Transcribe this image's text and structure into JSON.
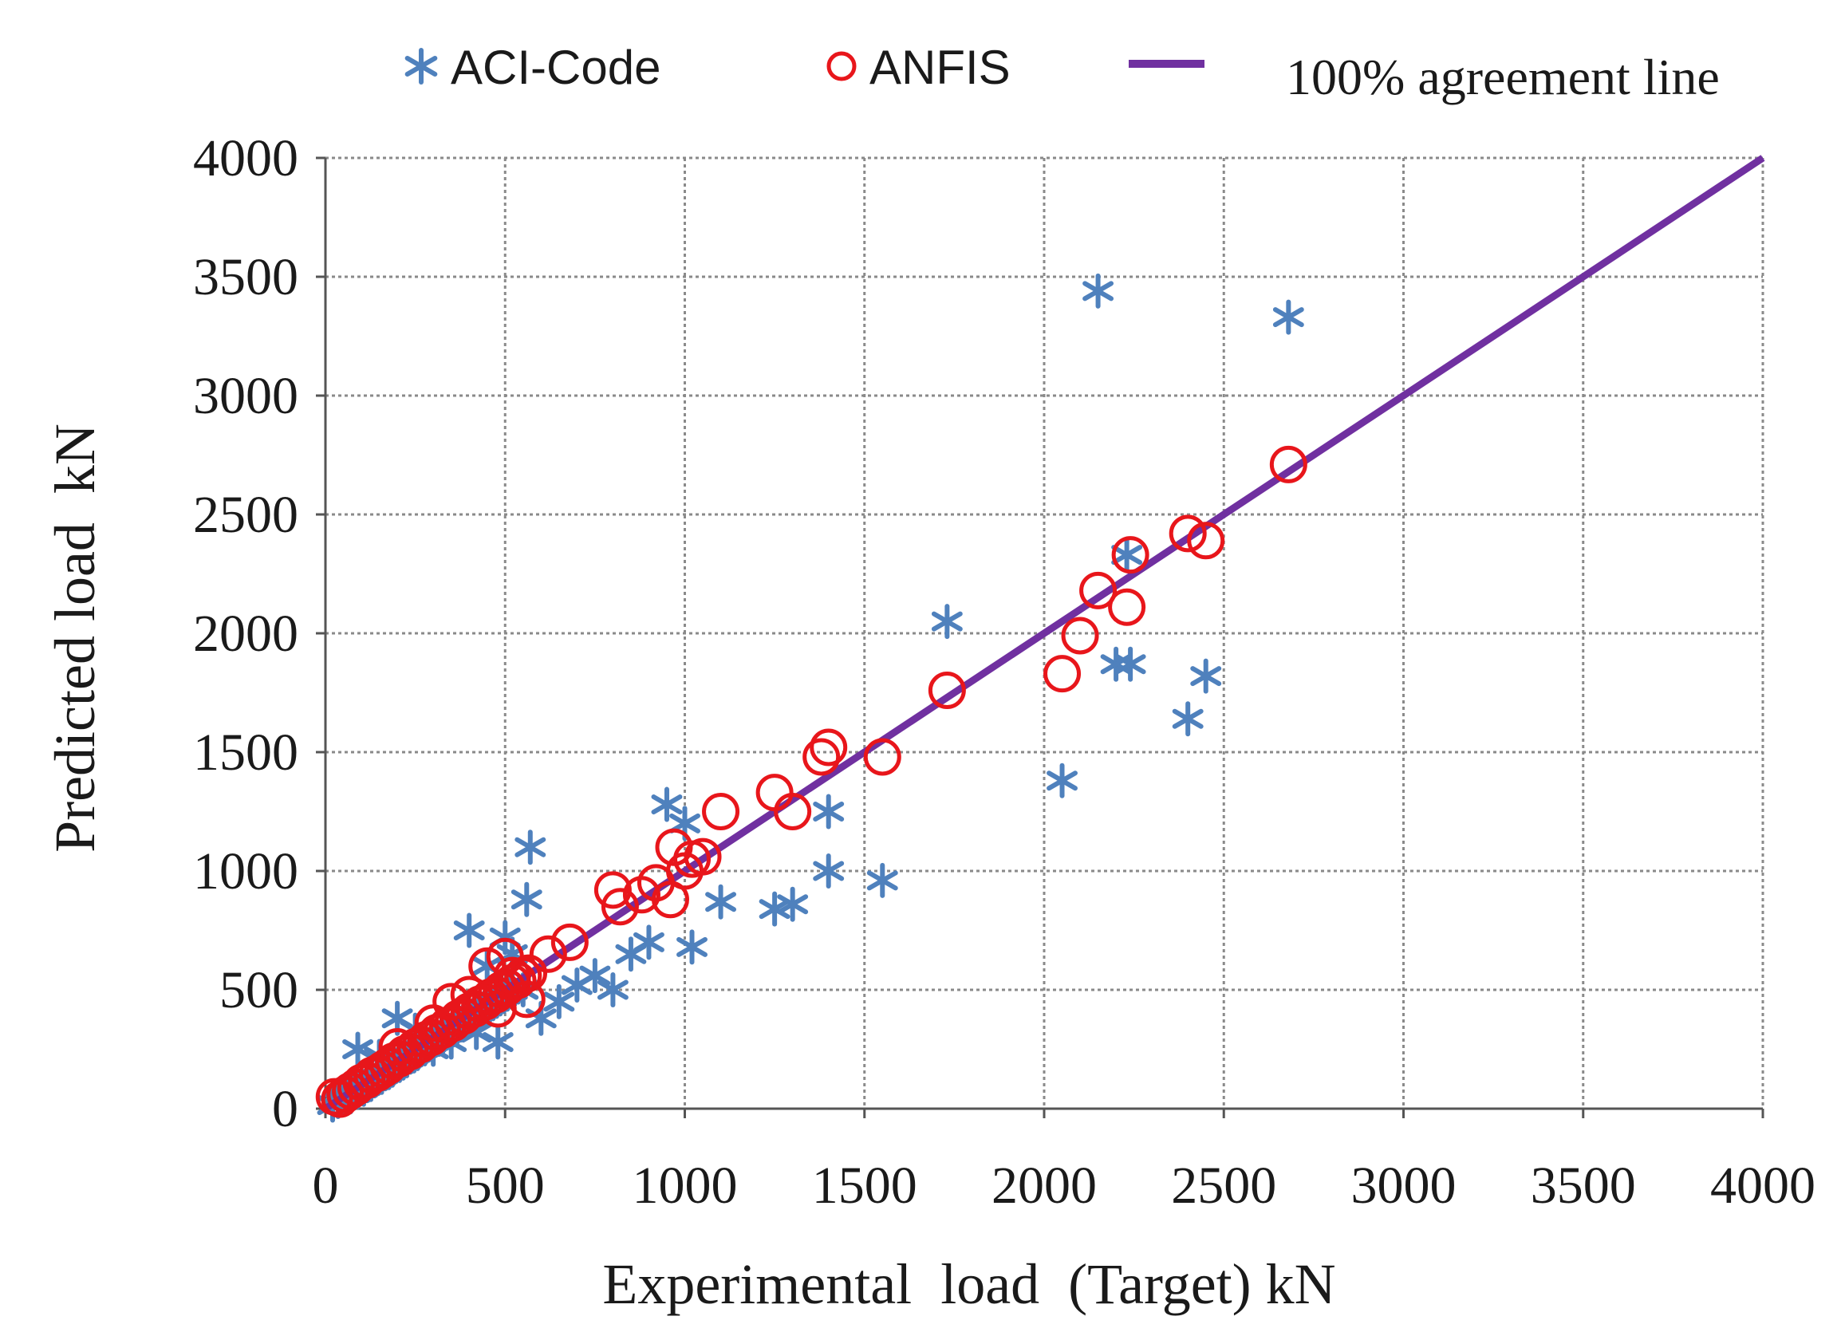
{
  "chart_data": {
    "type": "scatter",
    "title": "",
    "xlabel": "Experimental  load  (Target) kN",
    "ylabel": "Predicted load  kN",
    "xlim": [
      0,
      4000
    ],
    "ylim": [
      0,
      4000
    ],
    "xticks": [
      "0",
      "500",
      "1000",
      "1500",
      "2000",
      "2500",
      "3000",
      "3500",
      "4000"
    ],
    "yticks": [
      "0",
      "500",
      "1000",
      "1500",
      "2000",
      "2500",
      "3000",
      "3500",
      "4000"
    ],
    "grid": true,
    "legend_position": "top",
    "series": [
      {
        "name": "ACI-Code",
        "marker": "asterisk",
        "color": "#4F81BD",
        "points": [
          [
            20,
            15
          ],
          [
            35,
            30
          ],
          [
            50,
            40
          ],
          [
            60,
            55
          ],
          [
            70,
            50
          ],
          [
            80,
            65
          ],
          [
            90,
            70
          ],
          [
            100,
            85
          ],
          [
            110,
            95
          ],
          [
            120,
            100
          ],
          [
            130,
            115
          ],
          [
            140,
            120
          ],
          [
            150,
            130
          ],
          [
            160,
            145
          ],
          [
            170,
            150
          ],
          [
            180,
            160
          ],
          [
            190,
            170
          ],
          [
            200,
            185
          ],
          [
            210,
            190
          ],
          [
            220,
            200
          ],
          [
            230,
            215
          ],
          [
            240,
            220
          ],
          [
            250,
            235
          ],
          [
            260,
            240
          ],
          [
            270,
            255
          ],
          [
            280,
            260
          ],
          [
            290,
            270
          ],
          [
            300,
            285
          ],
          [
            310,
            290
          ],
          [
            320,
            300
          ],
          [
            330,
            310
          ],
          [
            340,
            320
          ],
          [
            350,
            330
          ],
          [
            360,
            345
          ],
          [
            370,
            350
          ],
          [
            380,
            360
          ],
          [
            390,
            370
          ],
          [
            400,
            380
          ],
          [
            410,
            390
          ],
          [
            420,
            400
          ],
          [
            430,
            410
          ],
          [
            440,
            420
          ],
          [
            450,
            430
          ],
          [
            460,
            440
          ],
          [
            470,
            450
          ],
          [
            480,
            460
          ],
          [
            490,
            470
          ],
          [
            500,
            480
          ],
          [
            510,
            490
          ],
          [
            520,
            500
          ],
          [
            150,
            220
          ],
          [
            200,
            380
          ],
          [
            250,
            330
          ],
          [
            300,
            250
          ],
          [
            350,
            280
          ],
          [
            400,
            750
          ],
          [
            420,
            320
          ],
          [
            450,
            600
          ],
          [
            480,
            280
          ],
          [
            500,
            720
          ],
          [
            520,
            650
          ],
          [
            550,
            500
          ],
          [
            560,
            880
          ],
          [
            570,
            1100
          ],
          [
            600,
            380
          ],
          [
            650,
            450
          ],
          [
            700,
            520
          ],
          [
            750,
            560
          ],
          [
            800,
            500
          ],
          [
            850,
            650
          ],
          [
            900,
            700
          ],
          [
            950,
            1280
          ],
          [
            1000,
            1200
          ],
          [
            1020,
            680
          ],
          [
            1100,
            870
          ],
          [
            1250,
            840
          ],
          [
            1300,
            860
          ],
          [
            1400,
            1000
          ],
          [
            1400,
            1250
          ],
          [
            1550,
            960
          ],
          [
            1730,
            2050
          ],
          [
            2050,
            1380
          ],
          [
            2150,
            3440
          ],
          [
            2200,
            1870
          ],
          [
            2230,
            2330
          ],
          [
            2240,
            1870
          ],
          [
            2400,
            1640
          ],
          [
            2450,
            1820
          ],
          [
            2680,
            3330
          ],
          [
            90,
            250
          ]
        ]
      },
      {
        "name": "ANFIS",
        "marker": "circle",
        "color": "#E8161B",
        "points": [
          [
            25,
            50
          ],
          [
            40,
            40
          ],
          [
            55,
            60
          ],
          [
            70,
            75
          ],
          [
            85,
            90
          ],
          [
            100,
            110
          ],
          [
            115,
            120
          ],
          [
            130,
            140
          ],
          [
            145,
            150
          ],
          [
            160,
            165
          ],
          [
            175,
            180
          ],
          [
            190,
            200
          ],
          [
            205,
            210
          ],
          [
            220,
            230
          ],
          [
            235,
            240
          ],
          [
            250,
            260
          ],
          [
            265,
            270
          ],
          [
            280,
            290
          ],
          [
            295,
            300
          ],
          [
            310,
            320
          ],
          [
            325,
            330
          ],
          [
            340,
            350
          ],
          [
            355,
            360
          ],
          [
            370,
            380
          ],
          [
            385,
            390
          ],
          [
            400,
            410
          ],
          [
            415,
            420
          ],
          [
            430,
            440
          ],
          [
            445,
            450
          ],
          [
            460,
            470
          ],
          [
            475,
            480
          ],
          [
            490,
            500
          ],
          [
            505,
            510
          ],
          [
            520,
            530
          ],
          [
            535,
            540
          ],
          [
            550,
            560
          ],
          [
            565,
            570
          ],
          [
            200,
            260
          ],
          [
            300,
            360
          ],
          [
            350,
            450
          ],
          [
            400,
            480
          ],
          [
            450,
            600
          ],
          [
            480,
            420
          ],
          [
            500,
            640
          ],
          [
            520,
            560
          ],
          [
            560,
            460
          ],
          [
            620,
            650
          ],
          [
            680,
            700
          ],
          [
            800,
            920
          ],
          [
            820,
            850
          ],
          [
            880,
            900
          ],
          [
            920,
            950
          ],
          [
            960,
            880
          ],
          [
            970,
            1100
          ],
          [
            1000,
            1000
          ],
          [
            1020,
            1050
          ],
          [
            1050,
            1060
          ],
          [
            1100,
            1250
          ],
          [
            1250,
            1330
          ],
          [
            1300,
            1250
          ],
          [
            1380,
            1480
          ],
          [
            1400,
            1520
          ],
          [
            1550,
            1480
          ],
          [
            1730,
            1760
          ],
          [
            2050,
            1830
          ],
          [
            2100,
            1990
          ],
          [
            2150,
            2180
          ],
          [
            2230,
            2110
          ],
          [
            2240,
            2330
          ],
          [
            2400,
            2420
          ],
          [
            2450,
            2390
          ],
          [
            2680,
            2710
          ]
        ]
      },
      {
        "name": "100% agreement line",
        "marker": "line",
        "color": "#7030A0",
        "points": [
          [
            0,
            0
          ],
          [
            4000,
            4000
          ]
        ]
      }
    ]
  }
}
